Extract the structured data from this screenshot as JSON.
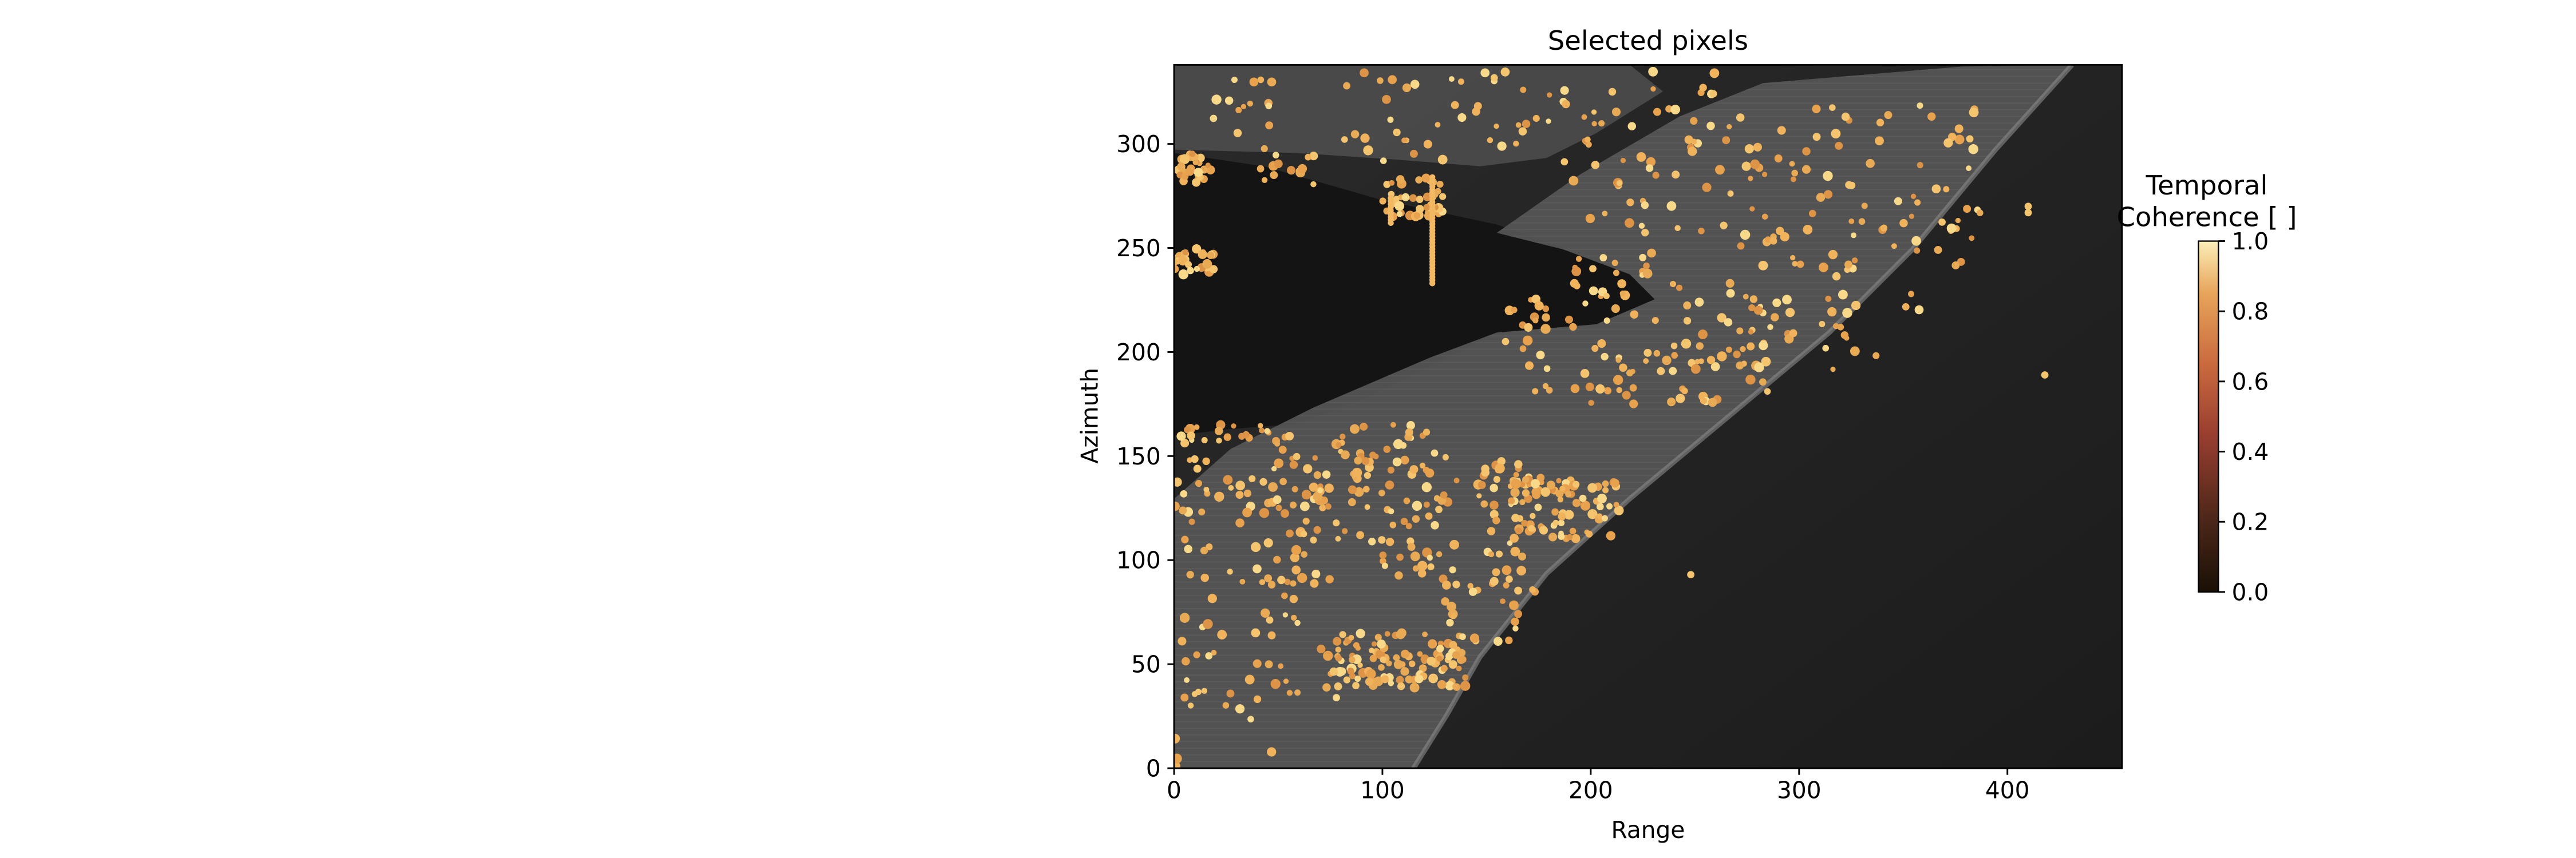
{
  "chart_data": {
    "type": "scatter",
    "title": "Selected pixels",
    "xlabel": "Range",
    "ylabel": "Azimuth",
    "xlim": [
      0,
      455
    ],
    "ylim": [
      0,
      338
    ],
    "xticks": [
      0,
      100,
      200,
      300,
      400
    ],
    "yticks": [
      0,
      50,
      100,
      150,
      200,
      250,
      300
    ],
    "grid": false,
    "background": "grayscale SAR amplitude image (urban area along a coastline, dark water in lower right)",
    "colorbar": {
      "title_line1": "Temporal",
      "title_line2": "Coherence [ ]",
      "range": [
        0,
        1
      ],
      "ticks": [
        "0.0",
        "0.2",
        "0.4",
        "0.6",
        "0.8",
        "1.0"
      ],
      "colormap": "afmhot",
      "colors": [
        "#1a1005",
        "#4a2618",
        "#9a3f30",
        "#c96a3e",
        "#e7a45a",
        "#fbeeb8"
      ]
    },
    "clusters": [
      {
        "x": [
          0,
          18
        ],
        "y": [
          280,
          296
        ],
        "n": 26
      },
      {
        "x": [
          15,
          60
        ],
        "y": [
          305,
          335
        ],
        "n": 14
      },
      {
        "x": [
          40,
          75
        ],
        "y": [
          280,
          300
        ],
        "n": 14
      },
      {
        "x": [
          80,
          190
        ],
        "y": [
          290,
          335
        ],
        "n": 45
      },
      {
        "x": [
          100,
          130
        ],
        "y": [
          265,
          285
        ],
        "n": 45
      },
      {
        "x": [
          200,
          260
        ],
        "y": [
          305,
          335
        ],
        "n": 12
      },
      {
        "x": [
          0,
          20
        ],
        "y": [
          237,
          250
        ],
        "n": 24
      },
      {
        "x": [
          190,
          390
        ],
        "y": [
          235,
          320
        ],
        "n": 150
      },
      {
        "x": [
          155,
          290
        ],
        "y": [
          175,
          235
        ],
        "n": 110
      },
      {
        "x": [
          270,
          360
        ],
        "y": [
          190,
          230
        ],
        "n": 30
      },
      {
        "x": [
          0,
          50
        ],
        "y": [
          155,
          165
        ],
        "n": 22
      },
      {
        "x": [
          45,
          135
        ],
        "y": [
          125,
          165
        ],
        "n": 55
      },
      {
        "x": [
          0,
          60
        ],
        "y": [
          60,
          150
        ],
        "n": 70
      },
      {
        "x": [
          60,
          170
        ],
        "y": [
          85,
          150
        ],
        "n": 110
      },
      {
        "x": [
          160,
          215
        ],
        "y": [
          110,
          140
        ],
        "n": 90
      },
      {
        "x": [
          130,
          175
        ],
        "y": [
          60,
          90
        ],
        "n": 25
      },
      {
        "x": [
          75,
          140
        ],
        "y": [
          38,
          65
        ],
        "n": 110
      },
      {
        "x": [
          0,
          80
        ],
        "y": [
          30,
          60
        ],
        "n": 25
      },
      {
        "x": [
          0,
          50
        ],
        "y": [
          0,
          30
        ],
        "n": 6
      }
    ],
    "lines": [
      {
        "x": 124,
        "y_from": 233,
        "y_to": 285
      },
      {
        "x": 104,
        "y_from": 262,
        "y_to": 275
      }
    ],
    "isolated_points": [
      {
        "x": 248,
        "y": 93
      },
      {
        "x": 418,
        "y": 189
      },
      {
        "x": 410,
        "y": 267
      },
      {
        "x": 410,
        "y": 270
      },
      {
        "x": 201,
        "y": 240
      }
    ]
  }
}
